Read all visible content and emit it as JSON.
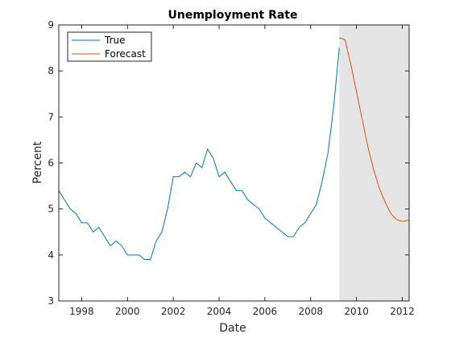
{
  "chart_data": {
    "type": "line",
    "title": "Unemployment Rate",
    "xlabel": "Date",
    "ylabel": "Percent",
    "xlim": [
      1997.0,
      2012.3
    ],
    "ylim": [
      3,
      9
    ],
    "x_ticks": [
      1998,
      2000,
      2002,
      2004,
      2006,
      2008,
      2010,
      2012
    ],
    "y_ticks": [
      3,
      4,
      5,
      6,
      7,
      8,
      9
    ],
    "grid": false,
    "legend_placement": "top-left",
    "shaded_region": {
      "x_start": 2009.25,
      "x_end": 2012.3,
      "color": "#e5e5e5"
    },
    "series": [
      {
        "name": "True",
        "color": "#0072bd",
        "x": [
          1997.0,
          1997.25,
          1997.5,
          1997.75,
          1998.0,
          1998.25,
          1998.5,
          1998.75,
          1999.0,
          1999.25,
          1999.5,
          1999.75,
          2000.0,
          2000.25,
          2000.5,
          2000.75,
          2001.0,
          2001.25,
          2001.5,
          2001.75,
          2002.0,
          2002.25,
          2002.5,
          2002.75,
          2003.0,
          2003.25,
          2003.5,
          2003.75,
          2004.0,
          2004.25,
          2004.5,
          2004.75,
          2005.0,
          2005.25,
          2005.5,
          2005.75,
          2006.0,
          2006.25,
          2006.5,
          2006.75,
          2007.0,
          2007.25,
          2007.5,
          2007.75,
          2008.0,
          2008.25,
          2008.5,
          2008.75,
          2009.0,
          2009.25
        ],
        "values": [
          5.4,
          5.2,
          5.0,
          4.9,
          4.7,
          4.7,
          4.5,
          4.6,
          4.4,
          4.2,
          4.3,
          4.2,
          4.0,
          4.0,
          4.0,
          3.9,
          3.9,
          4.3,
          4.5,
          5.0,
          5.7,
          5.7,
          5.8,
          5.7,
          6.0,
          5.9,
          6.3,
          6.1,
          5.7,
          5.8,
          5.6,
          5.4,
          5.4,
          5.2,
          5.1,
          5.0,
          4.8,
          4.7,
          4.6,
          4.5,
          4.4,
          4.4,
          4.6,
          4.7,
          4.9,
          5.1,
          5.6,
          6.2,
          7.2,
          8.5
        ]
      },
      {
        "name": "Forecast",
        "color": "#d95319",
        "x": [
          2009.25,
          2009.5,
          2009.75,
          2010.0,
          2010.25,
          2010.5,
          2010.75,
          2011.0,
          2011.25,
          2011.5,
          2011.75,
          2012.0,
          2012.25,
          2012.3
        ],
        "values": [
          8.72,
          8.68,
          8.15,
          7.55,
          6.95,
          6.35,
          5.85,
          5.45,
          5.15,
          4.9,
          4.77,
          4.73,
          4.75,
          4.76
        ]
      }
    ]
  }
}
